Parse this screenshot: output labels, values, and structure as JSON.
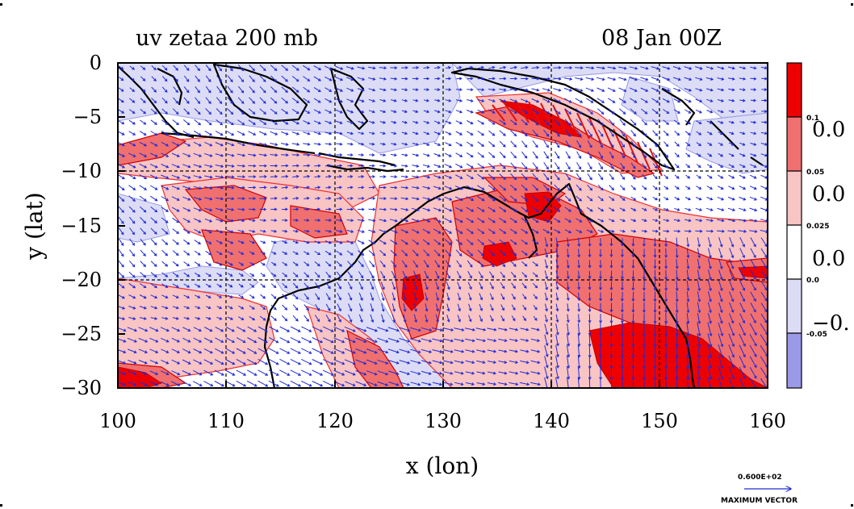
{
  "title": "uv zetaa 200 mb",
  "datetime": "08 Jan 00Z",
  "x_axis": {
    "label": "x (lon)",
    "range": [
      100,
      160
    ],
    "ticks": [
      "100",
      "110",
      "120",
      "130",
      "140",
      "150",
      "160"
    ]
  },
  "y_axis": {
    "label": "y (lat)",
    "range": [
      -30,
      0
    ],
    "ticks": [
      "0",
      "−5",
      "−10",
      "−15",
      "−20",
      "−25",
      "−30"
    ]
  },
  "colorbar": {
    "colors": [
      "#ee0000",
      "#f07070",
      "#f8c4c4",
      "#ffffff",
      "#dcdcf6",
      "#9a9ae6"
    ],
    "labels": [
      "0.1",
      "0.05",
      "0.025",
      "0.0",
      "-0.05"
    ],
    "big_labels": [
      "0.0",
      "0.0",
      "0.0",
      "−0."
    ]
  },
  "max_vector": {
    "value": "0.600E+02",
    "label": "MAXIMUM VECTOR"
  },
  "accent": {
    "vector": "#1f2bd6",
    "coast": "#000000",
    "contour": "#e01010"
  }
}
